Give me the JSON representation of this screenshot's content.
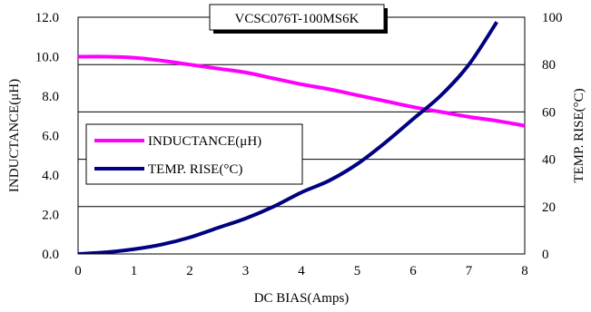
{
  "chart_data": {
    "type": "line",
    "title": "VCSC076T-100MS6K",
    "xlabel": "DC BIAS(Amps)",
    "ylabel_left": "INDUCTANCE(μH)",
    "ylabel_right": "TEMP. RISE(°C)",
    "xlim": [
      0,
      8
    ],
    "ylim_left": [
      0,
      12
    ],
    "ylim_right": [
      0,
      100
    ],
    "x_ticks": [
      "0",
      "1",
      "2",
      "3",
      "4",
      "5",
      "6",
      "7",
      "8"
    ],
    "y_left_ticks": [
      "0.0",
      "2.0",
      "4.0",
      "6.0",
      "8.0",
      "10.0",
      "12.0"
    ],
    "y_right_ticks": [
      "0",
      "20",
      "40",
      "60",
      "80",
      "100"
    ],
    "grid": "horizontal",
    "legend_position": "left-middle",
    "series": [
      {
        "name": "INDUCTANCE(μH)",
        "axis": "left",
        "color": "#ff00ff",
        "x": [
          0,
          0.5,
          1,
          1.5,
          2,
          2.5,
          3,
          3.5,
          4,
          4.5,
          5,
          5.5,
          6,
          6.5,
          7,
          7.5,
          8
        ],
        "y": [
          10.0,
          10.0,
          9.95,
          9.8,
          9.6,
          9.4,
          9.2,
          8.9,
          8.6,
          8.35,
          8.05,
          7.75,
          7.45,
          7.2,
          6.95,
          6.75,
          6.5
        ]
      },
      {
        "name": "TEMP. RISE(°C)",
        "axis": "right",
        "color": "#000080",
        "x": [
          0,
          0.5,
          1,
          1.5,
          2,
          2.5,
          3,
          3.5,
          4,
          4.5,
          5,
          5.5,
          6,
          6.5,
          7,
          7.5
        ],
        "y": [
          0,
          0.7,
          2,
          4,
          7,
          11,
          15,
          20,
          26,
          31,
          38,
          47,
          57,
          67,
          80,
          98
        ]
      }
    ]
  }
}
